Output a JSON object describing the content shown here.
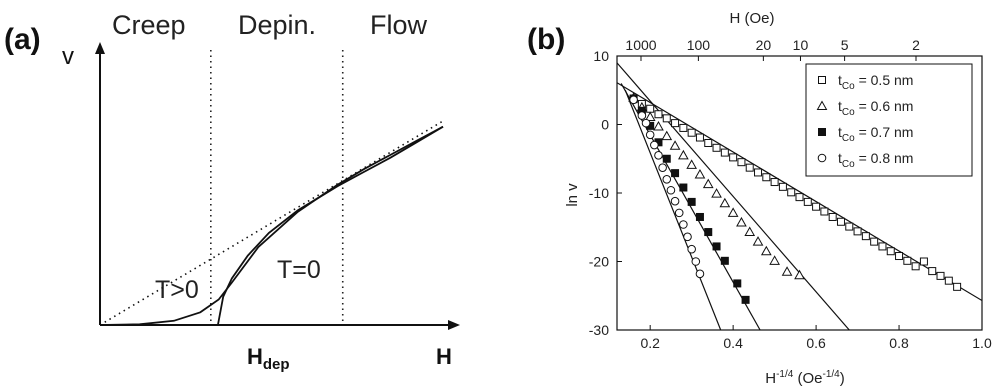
{
  "chart_data": [
    {
      "panel": "(a)",
      "type": "line",
      "regions": [
        "Creep",
        "Depin.",
        "Flow"
      ],
      "ylabel": "v",
      "xlabel": "H",
      "xtick_main": "H",
      "xtick_sub": "dep",
      "annotations": [
        "T>0",
        "T=0"
      ],
      "series": [
        {
          "style": "dotted",
          "x": [
            0,
            1.3
          ],
          "y": [
            0,
            1.44
          ]
        },
        {
          "name": "T=0",
          "x": [
            0.447,
            0.467,
            0.5,
            0.56,
            0.64,
            0.75,
            0.9,
            1.0,
            1.1,
            1.2,
            1.3
          ],
          "y": [
            0.0,
            0.2,
            0.33,
            0.49,
            0.65,
            0.81,
            0.98,
            1.08,
            1.18,
            1.29,
            1.4
          ]
        },
        {
          "name": "T>0",
          "x": [
            0.0,
            0.15,
            0.28,
            0.38,
            0.45,
            0.5,
            0.6,
            0.75,
            0.9,
            1.0,
            1.1,
            1.2,
            1.3
          ],
          "y": [
            0.0,
            0.005,
            0.03,
            0.09,
            0.18,
            0.3,
            0.55,
            0.8,
            0.99,
            1.1,
            1.2,
            1.3,
            1.4
          ]
        }
      ],
      "vlines": [
        0.42,
        0.92
      ],
      "xlim": [
        0,
        1.3
      ],
      "ylim": [
        0,
        1.8
      ]
    },
    {
      "panel": "(b)",
      "type": "scatter",
      "xlabel_main": "H",
      "xlabel_sup": "-1/4",
      "xlabel_tail": " (Oe",
      "xlabel_tail_sup": "-1/4",
      "xlabel_close": ")",
      "ylabel": "ln v",
      "top_axis_label": "H (Oe)",
      "xlim": [
        0.12,
        1.0
      ],
      "ylim": [
        -30,
        10
      ],
      "x_ticks": [
        0.2,
        0.4,
        0.6,
        0.8,
        1.0
      ],
      "x_tick_labels": [
        "0.2",
        "0.4",
        "0.6",
        "0.8",
        "1.0"
      ],
      "y_ticks": [
        10,
        0,
        -10,
        -20,
        -30
      ],
      "top_ticks": [
        1000,
        100,
        20,
        10,
        5,
        2
      ],
      "legend_position": "top-right",
      "legend": [
        {
          "label_main": "t",
          "label_sub": "Co",
          "label_rest": " = 0.5 nm",
          "marker": "square-open"
        },
        {
          "label_main": "t",
          "label_sub": "Co",
          "label_rest": " = 0.6 nm",
          "marker": "triangle-open"
        },
        {
          "label_main": "t",
          "label_sub": "Co",
          "label_rest": " = 0.7 nm",
          "marker": "square-filled"
        },
        {
          "label_main": "t",
          "label_sub": "Co",
          "label_rest": " = 0.8 nm",
          "marker": "circle-open"
        }
      ],
      "series": [
        {
          "marker": "square-open",
          "fit": {
            "x": [
              0.12,
              1.0
            ],
            "y": [
              6.1,
              -25.7
            ]
          },
          "x": [
            0.16,
            0.18,
            0.2,
            0.22,
            0.24,
            0.26,
            0.28,
            0.3,
            0.32,
            0.34,
            0.36,
            0.38,
            0.4,
            0.42,
            0.44,
            0.46,
            0.48,
            0.5,
            0.52,
            0.54,
            0.56,
            0.58,
            0.6,
            0.62,
            0.64,
            0.66,
            0.68,
            0.7,
            0.72,
            0.74,
            0.76,
            0.78,
            0.8,
            0.82,
            0.84,
            0.86,
            0.88,
            0.9,
            0.92,
            0.94
          ],
          "y": [
            3.7,
            3.0,
            2.3,
            1.5,
            0.9,
            0.2,
            -0.5,
            -1.2,
            -1.9,
            -2.7,
            -3.4,
            -4.1,
            -4.8,
            -5.5,
            -6.3,
            -7.0,
            -7.7,
            -8.4,
            -9.1,
            -9.9,
            -10.6,
            -11.3,
            -12.0,
            -12.7,
            -13.5,
            -14.2,
            -14.9,
            -15.6,
            -16.3,
            -17.1,
            -17.8,
            -18.5,
            -19.2,
            -19.9,
            -20.7,
            -20.0,
            -21.4,
            -22.1,
            -22.8,
            -23.7
          ]
        },
        {
          "marker": "triangle-open",
          "fit": {
            "x": [
              0.12,
              0.68
            ],
            "y": [
              9.0,
              -30.0
            ]
          },
          "x": [
            0.16,
            0.18,
            0.2,
            0.22,
            0.24,
            0.26,
            0.28,
            0.3,
            0.32,
            0.34,
            0.36,
            0.38,
            0.4,
            0.42,
            0.44,
            0.46,
            0.48,
            0.5,
            0.53,
            0.56
          ],
          "y": [
            3.9,
            2.5,
            1.1,
            -0.3,
            -1.7,
            -3.1,
            -4.5,
            -5.9,
            -7.3,
            -8.7,
            -10.1,
            -11.5,
            -12.9,
            -14.3,
            -15.7,
            -17.1,
            -18.5,
            -19.9,
            -21.5,
            -22.0
          ]
        },
        {
          "marker": "square-filled",
          "fit": {
            "x": [
              0.13,
              0.465
            ],
            "y": [
              6.0,
              -30.0
            ]
          },
          "x": [
            0.16,
            0.18,
            0.2,
            0.22,
            0.24,
            0.26,
            0.28,
            0.3,
            0.32,
            0.34,
            0.36,
            0.38,
            0.41,
            0.43
          ],
          "y": [
            3.8,
            2.0,
            -0.2,
            -2.6,
            -5.0,
            -7.1,
            -9.2,
            -11.3,
            -13.5,
            -15.7,
            -17.8,
            -19.9,
            -23.2,
            -25.6
          ]
        },
        {
          "marker": "circle-open",
          "fit": {
            "x": [
              0.14,
              0.37
            ],
            "y": [
              5.0,
              -30.0
            ]
          },
          "x": [
            0.16,
            0.18,
            0.19,
            0.2,
            0.21,
            0.22,
            0.23,
            0.24,
            0.25,
            0.26,
            0.27,
            0.28,
            0.29,
            0.3,
            0.31,
            0.32
          ],
          "y": [
            3.6,
            1.3,
            0.2,
            -1.5,
            -3.0,
            -4.5,
            -6.3,
            -8.0,
            -9.6,
            -11.2,
            -12.9,
            -14.6,
            -16.4,
            -18.2,
            -20.0,
            -21.8
          ]
        }
      ]
    }
  ]
}
